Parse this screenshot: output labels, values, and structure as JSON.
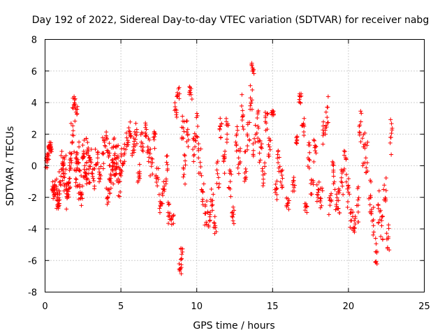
{
  "chart_data": {
    "type": "scatter",
    "title": "Day 192 of 2022, Sidereal Day-to-day VTEC variation (SDTVAR) for receiver nabg",
    "xlabel": "GPS time / hours",
    "ylabel": "SDTVAR / TECUs",
    "xlim": [
      0,
      25
    ],
    "ylim": [
      -8,
      8
    ],
    "xticks": [
      0,
      5,
      10,
      15,
      20,
      25
    ],
    "yticks": [
      -8,
      -6,
      -4,
      -2,
      0,
      2,
      4,
      6,
      8
    ],
    "xtick_labels": [
      "0",
      "5",
      "10",
      "15",
      "20",
      "25"
    ],
    "ytick_labels": [
      "-8",
      "-6",
      "-4",
      "-2",
      "0",
      "2",
      "4",
      "6",
      "8"
    ],
    "grid": true,
    "marker": "+",
    "color": "#ff0000",
    "series": [
      {
        "name": "SDTVAR",
        "x": [
          0.1,
          0.2,
          0.3,
          0.4,
          0.5,
          0.6,
          0.7,
          0.8,
          0.9,
          1.0,
          1.1,
          1.2,
          1.3,
          1.4,
          1.5,
          1.6,
          1.7,
          1.8,
          1.9,
          2.0,
          2.05,
          2.1,
          2.2,
          2.3,
          2.4,
          2.5,
          2.6,
          2.7,
          2.8,
          2.9,
          3.0,
          3.2,
          3.4,
          3.6,
          3.8,
          4.0,
          4.1,
          4.2,
          4.3,
          4.4,
          4.5,
          4.6,
          4.7,
          4.8,
          4.9,
          5.0,
          5.2,
          5.4,
          5.6,
          5.8,
          6.0,
          6.2,
          6.4,
          6.6,
          6.8,
          7.0,
          7.2,
          7.4,
          7.6,
          7.8,
          8.0,
          8.2,
          8.4,
          8.6,
          8.8,
          8.9,
          9.0,
          9.1,
          9.2,
          9.4,
          9.6,
          9.8,
          10.0,
          10.2,
          10.4,
          10.6,
          10.8,
          11.0,
          11.2,
          11.4,
          11.6,
          11.8,
          12.0,
          12.2,
          12.4,
          12.6,
          12.8,
          13.0,
          13.2,
          13.4,
          13.6,
          13.7,
          13.8,
          14.0,
          14.2,
          14.4,
          14.6,
          14.8,
          15.0,
          15.2,
          15.4,
          15.6,
          16.0,
          16.4,
          16.6,
          16.8,
          17.0,
          17.2,
          17.4,
          17.6,
          17.8,
          18.0,
          18.2,
          18.4,
          18.6,
          18.8,
          19.0,
          19.2,
          19.4,
          19.6,
          19.8,
          20.0,
          20.2,
          20.4,
          20.6,
          20.8,
          21.0,
          21.2,
          21.4,
          21.6,
          21.8,
          22.0,
          22.2,
          22.4,
          22.6,
          22.8
        ],
        "y": [
          0.2,
          0.8,
          1.1,
          1.2,
          -1.5,
          -1.8,
          -1.2,
          -2.2,
          -2.4,
          -1.0,
          0.5,
          -0.2,
          -0.5,
          -2.0,
          -1.5,
          -0.8,
          0.2,
          1.5,
          4.0,
          0.5,
          3.4,
          -0.3,
          0.8,
          -1.2,
          -1.8,
          0.6,
          0.0,
          -0.5,
          1.0,
          -0.2,
          0.3,
          -0.8,
          0.5,
          -0.4,
          0.8,
          1.5,
          -2.0,
          0.8,
          -1.5,
          0.2,
          -0.6,
          1.2,
          -0.2,
          0.5,
          -1.0,
          0.3,
          0.8,
          1.6,
          2.2,
          1.2,
          2.0,
          -0.5,
          1.5,
          2.3,
          1.0,
          0.2,
          1.8,
          -0.8,
          -2.5,
          -1.5,
          -0.2,
          -3.0,
          -3.4,
          3.5,
          4.5,
          -6.5,
          -5.6,
          2.4,
          -0.2,
          2.0,
          4.5,
          1.2,
          2.5,
          0.5,
          -1.5,
          -3.0,
          -3.5,
          -2.2,
          -3.8,
          -0.5,
          1.8,
          0.3,
          2.0,
          -1.0,
          -3.2,
          1.5,
          0.5,
          3.5,
          -0.2,
          2.0,
          4.3,
          6.2,
          1.5,
          2.5,
          0.8,
          -0.5,
          2.8,
          1.2,
          3.4,
          -1.5,
          0.2,
          -0.8,
          -2.4,
          -1.2,
          1.8,
          4.2,
          2.5,
          -2.6,
          0.5,
          -1.8,
          1.2,
          -1.5,
          -2.2,
          2.0,
          3.4,
          -2.5,
          -0.4,
          -1.8,
          -2.2,
          -1.0,
          -0.2,
          -1.8,
          -3.0,
          -4.2,
          -2.5,
          2.5,
          1.2,
          0.5,
          -2.0,
          -3.5,
          -5.5,
          -2.5,
          -3.8,
          -1.5,
          -4.5,
          1.8
        ],
        "spread": [
          0.5,
          0.6,
          0.4,
          0.3,
          0.6,
          0.7,
          0.6,
          0.5,
          0.4,
          0.8,
          0.9,
          1.0,
          1.2,
          0.9,
          0.8,
          1.0,
          1.0,
          1.2,
          0.4,
          1.1,
          0.6,
          1.2,
          1.1,
          1.0,
          1.0,
          1.1,
          1.0,
          0.8,
          0.8,
          0.9,
          0.9,
          0.9,
          0.7,
          0.8,
          1.0,
          0.7,
          0.6,
          0.9,
          0.8,
          1.0,
          1.0,
          0.8,
          0.8,
          0.9,
          1.0,
          1.0,
          0.8,
          0.6,
          0.6,
          0.6,
          0.8,
          0.7,
          0.6,
          0.5,
          0.8,
          0.9,
          0.8,
          0.9,
          0.8,
          0.9,
          1.0,
          0.8,
          0.6,
          1.0,
          0.6,
          0.4,
          0.4,
          0.8,
          1.0,
          1.0,
          0.6,
          1.0,
          1.0,
          1.0,
          1.0,
          0.8,
          0.6,
          0.8,
          0.6,
          1.0,
          1.2,
          0.8,
          1.0,
          1.0,
          0.6,
          1.2,
          1.0,
          1.2,
          1.2,
          1.0,
          1.0,
          0.4,
          1.2,
          1.0,
          1.2,
          0.8,
          0.8,
          0.6,
          0.2,
          0.8,
          0.8,
          0.6,
          0.4,
          0.6,
          0.4,
          0.4,
          0.6,
          0.4,
          1.2,
          1.2,
          1.0,
          1.0,
          0.8,
          1.0,
          1.0,
          0.8,
          1.0,
          1.2,
          1.0,
          1.0,
          1.2,
          1.0,
          1.0,
          1.0,
          1.2,
          1.0,
          1.2,
          1.2,
          1.2,
          1.0,
          1.0,
          1.2,
          1.0,
          0.8,
          1.0,
          1.2
        ]
      }
    ]
  }
}
